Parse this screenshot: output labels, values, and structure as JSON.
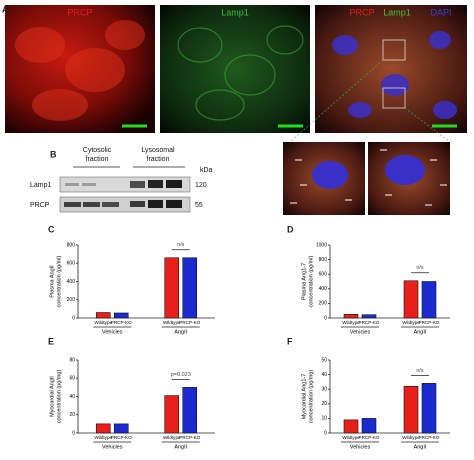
{
  "figure": {
    "panel_a": {
      "letter": "A",
      "image1_label": "PRCP",
      "image2_label": "Lamp1",
      "merge_labels": [
        "PRCP",
        "Lamp1",
        "DAPI"
      ]
    },
    "panel_b": {
      "letter": "B",
      "fraction1": [
        "Cytosolic",
        "fraction"
      ],
      "fraction2": [
        "Lysosomal",
        "fraction"
      ],
      "unit": "kDa",
      "rows": [
        "Lamp1",
        "PRCP"
      ],
      "sizes": [
        "120",
        "55"
      ]
    }
  },
  "chart_data": [
    {
      "type": "bar",
      "letter": "C",
      "ylabel": [
        "Plasma AngII",
        "concentration (pg/ml)"
      ],
      "categories": [
        "Vehicles",
        "AngII"
      ],
      "series": [
        {
          "name": "Wildtype",
          "color": "#e8201c",
          "values": [
            60,
            660
          ]
        },
        {
          "name": "PRCP-KO",
          "color": "#1c2bd0",
          "values": [
            55,
            660
          ]
        }
      ],
      "ylim": [
        0,
        800
      ],
      "yticks": [
        0,
        200,
        400,
        600,
        800
      ],
      "annotation": "n/s"
    },
    {
      "type": "bar",
      "letter": "D",
      "ylabel": [
        "Plasma Ang1-7",
        "concentration (pg/ml)"
      ],
      "categories": [
        "Vehicles",
        "AngII"
      ],
      "series": [
        {
          "name": "Wildtype",
          "color": "#e8201c",
          "values": [
            50,
            510
          ]
        },
        {
          "name": "PRCP-KO",
          "color": "#1c2bd0",
          "values": [
            45,
            500
          ]
        }
      ],
      "ylim": [
        0,
        1000
      ],
      "yticks": [
        0,
        200,
        400,
        600,
        800,
        1000
      ],
      "annotation": "n/s"
    },
    {
      "type": "bar",
      "letter": "E",
      "ylabel": [
        "Myocardial AngII",
        "concentration (pg/mg)"
      ],
      "categories": [
        "Vehicles",
        "AngII"
      ],
      "series": [
        {
          "name": "Wildtype",
          "color": "#e8201c",
          "values": [
            10,
            41
          ]
        },
        {
          "name": "PRCP-KO",
          "color": "#1c2bd0",
          "values": [
            10,
            50
          ]
        }
      ],
      "ylim": [
        0,
        80
      ],
      "yticks": [
        0,
        20,
        40,
        60,
        80
      ],
      "annotation": "p=0.023"
    },
    {
      "type": "bar",
      "letter": "F",
      "ylabel": [
        "Myocardial Ang1-7",
        "concentration (pg/mg)"
      ],
      "categories": [
        "Vehicles",
        "AngII"
      ],
      "series": [
        {
          "name": "Wildtype",
          "color": "#e8201c",
          "values": [
            9,
            32
          ]
        },
        {
          "name": "PRCP-KO",
          "color": "#1c2bd0",
          "values": [
            10,
            34
          ]
        }
      ],
      "ylim": [
        0,
        50
      ],
      "yticks": [
        0,
        10,
        20,
        30,
        40,
        50
      ],
      "annotation": "n/s"
    }
  ]
}
